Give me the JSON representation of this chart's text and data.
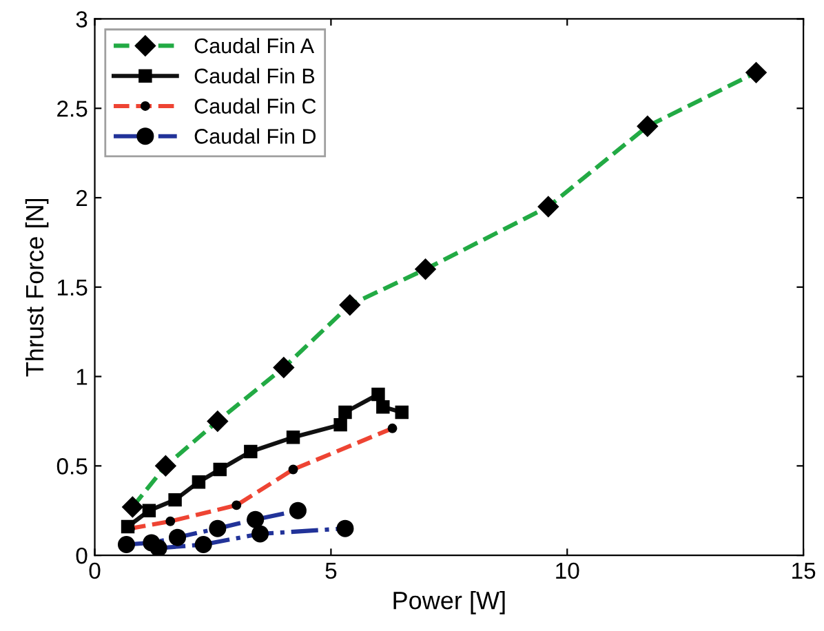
{
  "chart_data": {
    "type": "line",
    "xlabel": "Power [W]",
    "ylabel": "Thrust Force [N]",
    "xlim": [
      0,
      15
    ],
    "ylim": [
      0,
      3
    ],
    "xticks": [
      0,
      5,
      10,
      15
    ],
    "yticks": [
      0,
      0.5,
      1,
      1.5,
      2,
      2.5,
      3
    ],
    "grid": false,
    "legend": "top left",
    "series": [
      {
        "name": "Caudal Fin A",
        "color": "#22aa44",
        "line_style": "dashed",
        "marker": "diamond",
        "x": [
          0.8,
          1.5,
          2.6,
          4.0,
          5.4,
          7.0,
          9.6,
          11.7,
          14.0
        ],
        "values": [
          0.27,
          0.5,
          0.75,
          1.05,
          1.4,
          1.6,
          1.95,
          2.4,
          2.7
        ]
      },
      {
        "name": "Caudal Fin B",
        "color": "#111111",
        "line_style": "solid",
        "marker": "square",
        "x": [
          0.7,
          1.15,
          1.7,
          2.2,
          2.65,
          3.3,
          4.2,
          5.2,
          5.3,
          6.0,
          6.1,
          6.5
        ],
        "values": [
          0.16,
          0.25,
          0.31,
          0.41,
          0.48,
          0.58,
          0.66,
          0.73,
          0.8,
          0.9,
          0.83,
          0.8
        ]
      },
      {
        "name": "Caudal Fin C",
        "color": "#ee4433",
        "line_style": "dashed",
        "marker": "circle",
        "x": [
          0.75,
          1.6,
          3.0,
          4.2,
          6.3
        ],
        "values": [
          0.15,
          0.19,
          0.28,
          0.48,
          0.71
        ]
      },
      {
        "name": "Caudal Fin D",
        "color": "#223399",
        "line_style": "dashdot",
        "marker": "circle",
        "x": [
          0.67,
          1.2,
          1.75,
          2.6,
          3.4,
          4.3,
          null,
          1.35,
          2.3,
          3.5,
          5.3
        ],
        "values": [
          0.06,
          0.07,
          0.1,
          0.15,
          0.2,
          0.25,
          null,
          0.04,
          0.06,
          0.12,
          0.15
        ]
      }
    ]
  }
}
